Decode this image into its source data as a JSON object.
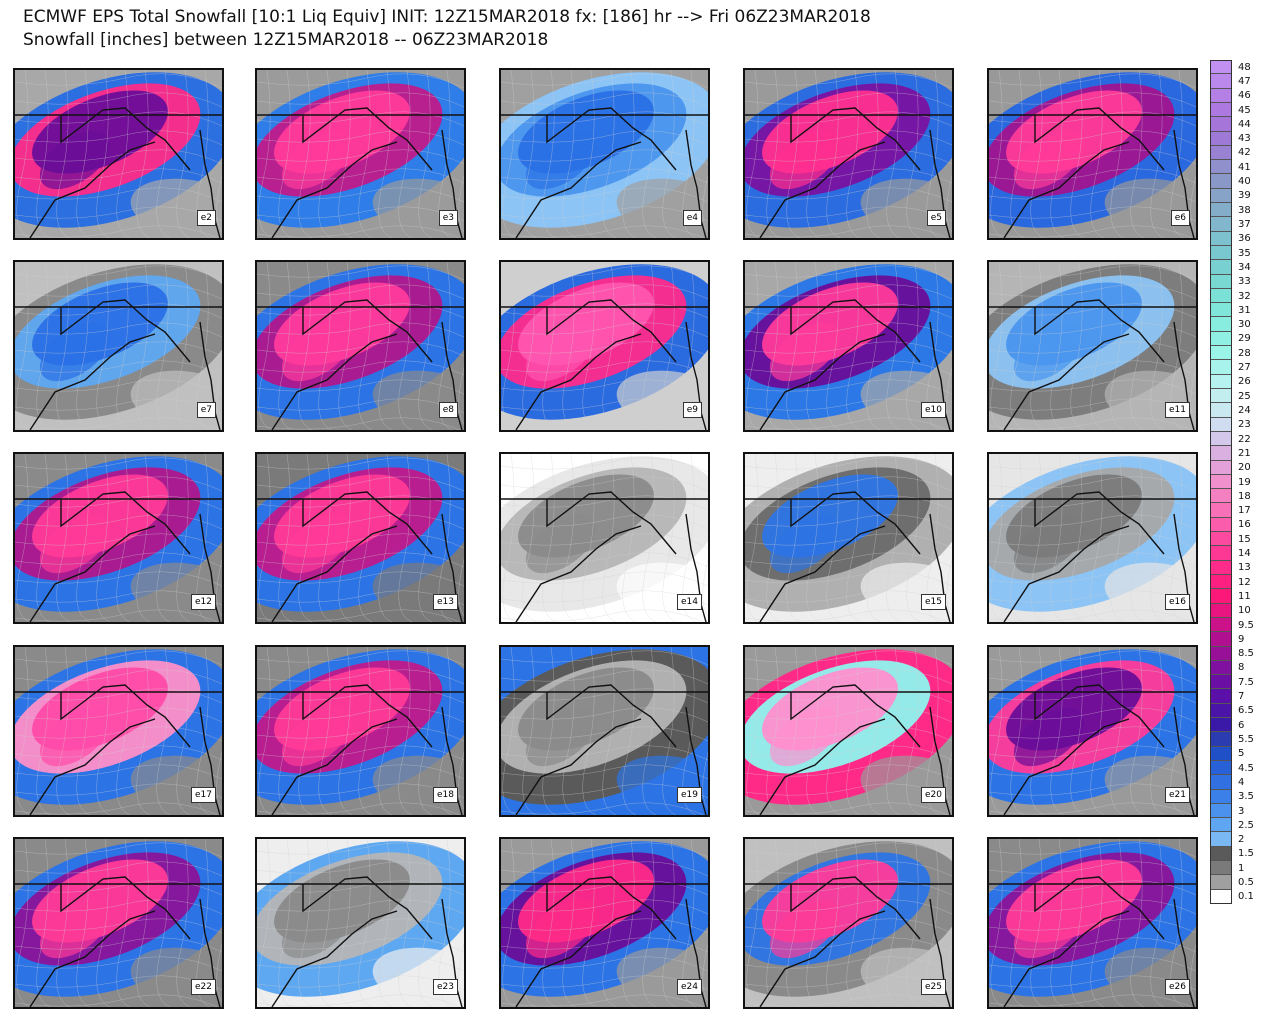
{
  "header": {
    "line1": "ECMWF EPS Total Snowfall [10:1 Liq Equiv] INIT: 12Z15MAR2018 fx: [186] hr --> Fri 06Z23MAR2018",
    "line2": "Snowfall [inches] between 12Z15MAR2018 -- 06Z23MAR2018"
  },
  "members": [
    {
      "label": "e2",
      "c": [
        "#6a0d99",
        "#ff2a88",
        "#2b6fe0",
        "#a8a8a8"
      ]
    },
    {
      "label": "e3",
      "c": [
        "#ff3a9a",
        "#c01a8a",
        "#2e7de8",
        "#9b9b9b"
      ]
    },
    {
      "label": "e4",
      "c": [
        "#2a70e6",
        "#4a95ee",
        "#8cc4f6",
        "#a0a0a0"
      ]
    },
    {
      "label": "e5",
      "c": [
        "#ff2f8f",
        "#7a12a0",
        "#2b6de0",
        "#9a9a9a"
      ]
    },
    {
      "label": "e6",
      "c": [
        "#ff3a98",
        "#a0148f",
        "#2a68df",
        "#999999"
      ]
    },
    {
      "label": "e7",
      "c": [
        "#2a6fe6",
        "#5ea8f2",
        "#8a8a8a",
        "#c0c0c0"
      ]
    },
    {
      "label": "e8",
      "c": [
        "#ff3a9c",
        "#b0178c",
        "#2c74e6",
        "#8a8a8a"
      ]
    },
    {
      "label": "e9",
      "c": [
        "#ff55b0",
        "#ff2a8c",
        "#2b6be0",
        "#cfcfcf"
      ]
    },
    {
      "label": "e10",
      "c": [
        "#ff3a9a",
        "#6a0d99",
        "#2c78e6",
        "#a8a8a8"
      ]
    },
    {
      "label": "e11",
      "c": [
        "#4a95ee",
        "#8cc4f6",
        "#7d7d7d",
        "#b5b5b5"
      ]
    },
    {
      "label": "e12",
      "c": [
        "#ff3a98",
        "#b0178c",
        "#2c74e6",
        "#8a8a8a"
      ]
    },
    {
      "label": "e13",
      "c": [
        "#ff3a98",
        "#c0198a",
        "#2c74e6",
        "#7a7a7a"
      ]
    },
    {
      "label": "e14",
      "c": [
        "#8a8a8a",
        "#b5b5b5",
        "#e8e8e8",
        "#ffffff"
      ]
    },
    {
      "label": "e15",
      "c": [
        "#2c74e6",
        "#6a6a6a",
        "#b0b0b0",
        "#eeeeee"
      ]
    },
    {
      "label": "e16",
      "c": [
        "#7a7a7a",
        "#a8a8a8",
        "#8cc4f6",
        "#e6e6e6"
      ]
    },
    {
      "label": "e17",
      "c": [
        "#ff4aa8",
        "#ff8fc8",
        "#2c74e6",
        "#8a8a8a"
      ]
    },
    {
      "label": "e18",
      "c": [
        "#ff3a98",
        "#c0198a",
        "#2c74e6",
        "#8a8a8a"
      ]
    },
    {
      "label": "e19",
      "c": [
        "#8a8a8a",
        "#b5b5b5",
        "#5a5a5a",
        "#2c74e6"
      ]
    },
    {
      "label": "e20",
      "c": [
        "#ff8fd0",
        "#8ef4ee",
        "#ff2a88",
        "#9a9a9a"
      ]
    },
    {
      "label": "e21",
      "c": [
        "#6a0d99",
        "#ff3a98",
        "#2c74e6",
        "#9a9a9a"
      ]
    },
    {
      "label": "e22",
      "c": [
        "#ff3a98",
        "#8a1398",
        "#2c74e6",
        "#8a8a8a"
      ]
    },
    {
      "label": "e23",
      "c": [
        "#8a8a8a",
        "#b5b5b5",
        "#5ea8f2",
        "#eeeeee"
      ]
    },
    {
      "label": "e24",
      "c": [
        "#ff2a88",
        "#6a0d99",
        "#2c74e6",
        "#9a9a9a"
      ]
    },
    {
      "label": "e25",
      "c": [
        "#ff3a98",
        "#2c74e6",
        "#8a8a8a",
        "#c0c0c0"
      ]
    },
    {
      "label": "e26",
      "c": [
        "#ff3a98",
        "#8a1398",
        "#2c74e6",
        "#8a8a8a"
      ]
    }
  ],
  "colorbar": {
    "labels": [
      "48",
      "47",
      "46",
      "45",
      "44",
      "43",
      "42",
      "41",
      "40",
      "39",
      "38",
      "37",
      "36",
      "35",
      "34",
      "33",
      "32",
      "31",
      "30",
      "29",
      "28",
      "27",
      "26",
      "25",
      "24",
      "23",
      "22",
      "21",
      "20",
      "19",
      "18",
      "17",
      "16",
      "15",
      "14",
      "13",
      "12",
      "11",
      "10",
      "9.5",
      "9",
      "8.5",
      "8",
      "7.5",
      "7",
      "6.5",
      "6",
      "5.5",
      "5",
      "4.5",
      "4",
      "3.5",
      "3",
      "2.5",
      "2",
      "1.5",
      "1",
      "0.5",
      "0.1"
    ],
    "colors": [
      "#c190f0",
      "#bb88ec",
      "#b580e6",
      "#ad78e0",
      "#a675da",
      "#9f79d6",
      "#9a82d2",
      "#9090cc",
      "#8a98c8",
      "#87a3c8",
      "#84adca",
      "#81b6cc",
      "#7dc0ce",
      "#7ac8cf",
      "#79d0d0",
      "#79d8d2",
      "#7be0d6",
      "#80e6da",
      "#88ecdf",
      "#90f0e3",
      "#9af4e8",
      "#a8f4ec",
      "#b6f2ef",
      "#c2eef0",
      "#cae8f0",
      "#d0dcf0",
      "#d4c8ea",
      "#dab0e0",
      "#e4a0d8",
      "#f090cc",
      "#f480c2",
      "#f870b8",
      "#fb5cac",
      "#fc4aa0",
      "#fd3894",
      "#fd2c8a",
      "#fd2080",
      "#fc1878",
      "#e81480",
      "#cc1288",
      "#b01090",
      "#981098",
      "#8010a0",
      "#6a0ea4",
      "#5a10a8",
      "#4a14a8",
      "#3a18a8",
      "#2a3cb0",
      "#2050c8",
      "#2860d8",
      "#3070e0",
      "#3a80e8",
      "#4a92ee",
      "#5ea6f2",
      "#7ab8f4",
      "#5a5a5a",
      "#7a7a7a",
      "#a0a0a0",
      "#ffffff"
    ]
  }
}
